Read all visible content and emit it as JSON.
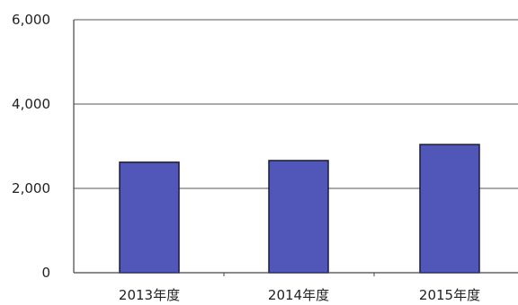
{
  "chart_data": {
    "type": "bar",
    "title": "",
    "xlabel": "",
    "ylabel": "",
    "categories": [
      "2013年度",
      "2014年度",
      "2015年度"
    ],
    "values": [
      2620,
      2660,
      3040
    ],
    "ylim": [
      0,
      6000
    ],
    "yticks": [
      0,
      2000,
      4000,
      6000
    ],
    "ytick_labels": [
      "0",
      "2,000",
      "4,000",
      "6,000"
    ],
    "grid": true,
    "legend": "none",
    "bar_color": "#5057b8",
    "bar_edge_color": "#1a1a3a"
  }
}
